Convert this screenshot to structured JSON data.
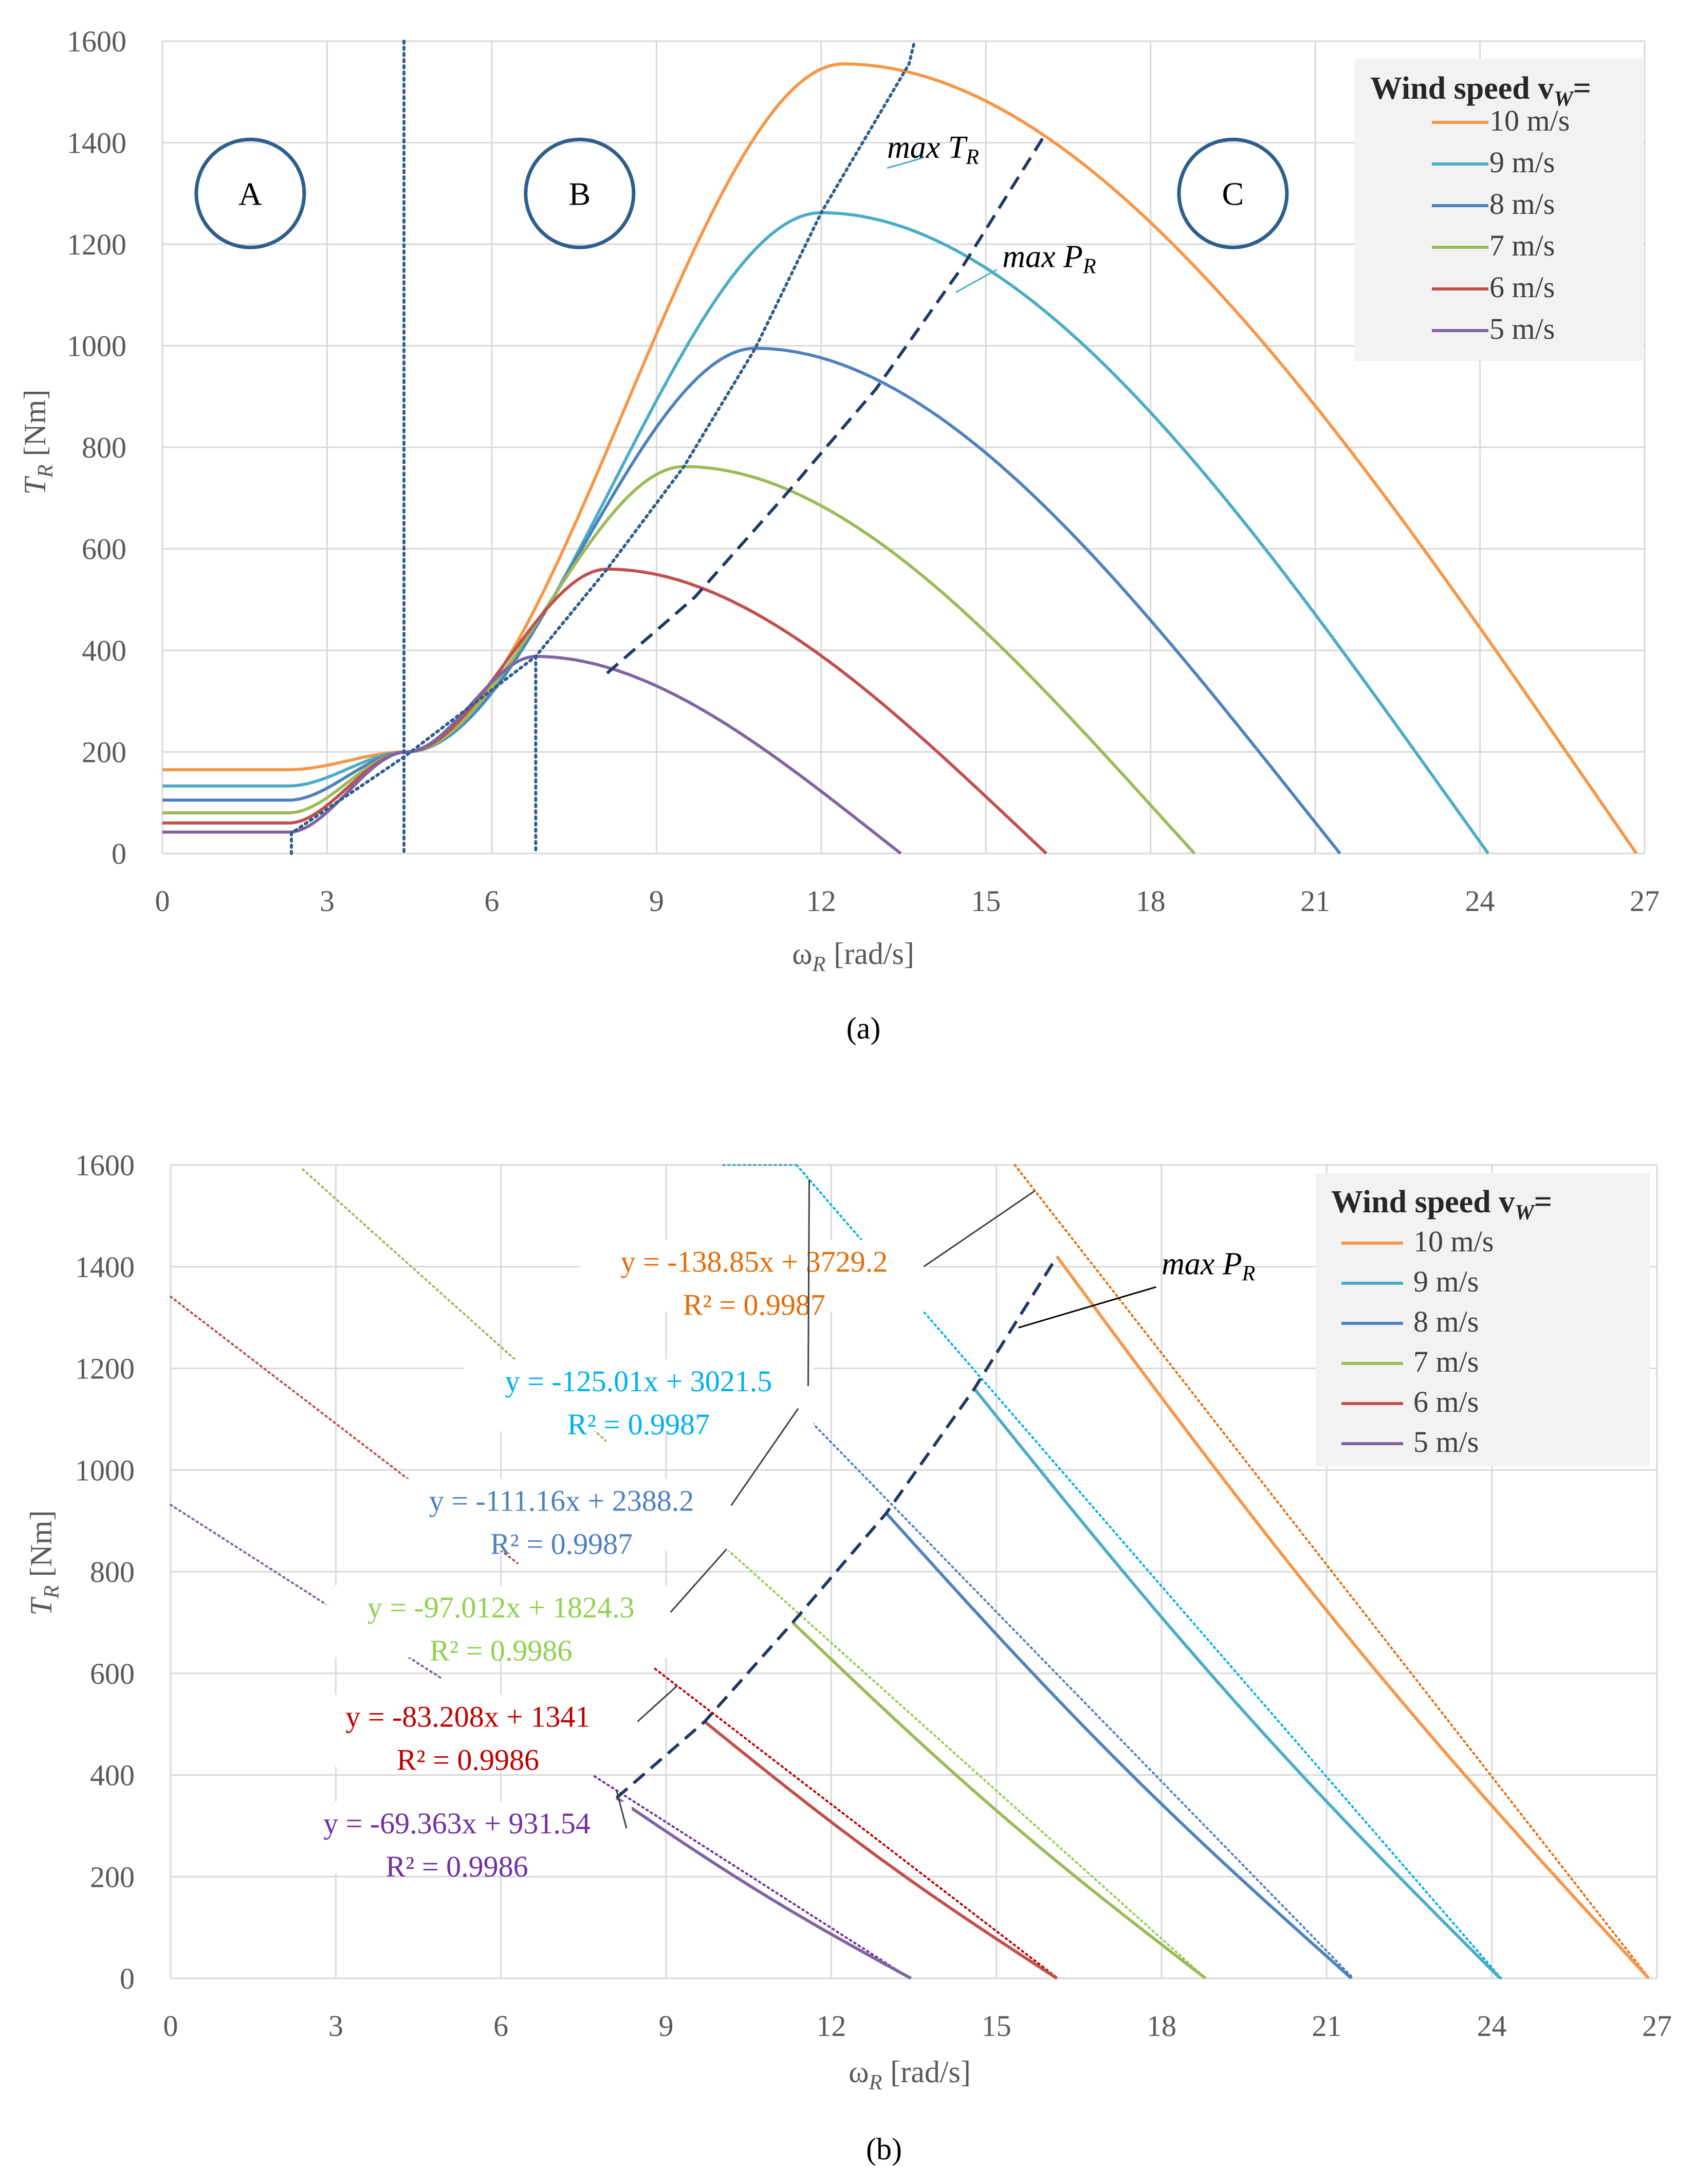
{
  "chart_data": [
    {
      "panel": "(a)",
      "type": "line",
      "xlabel_main": "ω",
      "xlabel_sub": "R",
      "xlabel_unit": "[rad/s]",
      "ylabel_main": "T",
      "ylabel_sub": "R",
      "ylabel_unit": "[Nm]",
      "xlim": [
        0,
        27
      ],
      "ylim": [
        0,
        1600
      ],
      "xticks": [
        "0",
        "3",
        "6",
        "9",
        "12",
        "15",
        "18",
        "21",
        "24",
        "27"
      ],
      "yticks": [
        "0",
        "200",
        "400",
        "600",
        "800",
        "1000",
        "1200",
        "1400",
        "1600"
      ],
      "grid": true,
      "legend_position": "top-right",
      "legend_title": "Wind speed v",
      "legend_title_sub": "W",
      "legend_title_suffix": "=",
      "series": [
        {
          "name": "10 m/s",
          "v": 10,
          "color": "#F79646",
          "plateau": 165,
          "peak_x": 12.4,
          "peak_y": 1555,
          "zero_x": 26.85
        },
        {
          "name": "9 m/s",
          "v": 9,
          "color": "#4BACC6",
          "plateau": 133,
          "peak_x": 12.0,
          "peak_y": 1262,
          "zero_x": 24.15
        },
        {
          "name": "8 m/s",
          "v": 8,
          "color": "#4F81BD",
          "plateau": 105,
          "peak_x": 10.8,
          "peak_y": 995,
          "zero_x": 21.45
        },
        {
          "name": "7 m/s",
          "v": 7,
          "color": "#9BBB59",
          "plateau": 80,
          "peak_x": 9.5,
          "peak_y": 762,
          "zero_x": 18.8
        },
        {
          "name": "6 m/s",
          "v": 6,
          "color": "#C0504D",
          "plateau": 60,
          "peak_x": 8.1,
          "peak_y": 560,
          "zero_x": 16.1
        },
        {
          "name": "5 m/s",
          "v": 5,
          "color": "#8064A2",
          "plateau": 42,
          "peak_x": 6.8,
          "peak_y": 388,
          "zero_x": 13.45
        }
      ],
      "zone_labels": [
        {
          "text": "A",
          "x": 1.6,
          "y": 1300
        },
        {
          "text": "B",
          "x": 7.6,
          "y": 1300
        },
        {
          "text": "C",
          "x": 19.5,
          "y": 1300
        }
      ],
      "boundary_x": 4.4,
      "max_T_curve": [
        [
          2.35,
          0
        ],
        [
          2.35,
          40
        ],
        [
          4.4,
          190
        ],
        [
          6.8,
          388
        ],
        [
          8.1,
          560
        ],
        [
          9.5,
          762
        ],
        [
          10.8,
          995
        ],
        [
          12.0,
          1262
        ],
        [
          13.6,
          1555
        ],
        [
          13.7,
          1600
        ]
      ],
      "max_P_curve": [
        [
          8.1,
          355
        ],
        [
          9.7,
          505
        ],
        [
          11.3,
          700
        ],
        [
          13.0,
          915
        ],
        [
          14.6,
          1160
        ],
        [
          16.1,
          1420
        ]
      ],
      "annotations": [
        {
          "text": "max T",
          "sub": "R",
          "x": 13.2,
          "y": 1370
        },
        {
          "text": "max P",
          "sub": "R",
          "x": 15.3,
          "y": 1155
        }
      ]
    },
    {
      "panel": "(b)",
      "type": "line",
      "xlabel_main": "ω",
      "xlabel_sub": "R",
      "xlabel_unit": "[rad/s]",
      "ylabel_main": "T",
      "ylabel_sub": "R",
      "ylabel_unit": "[Nm]",
      "xlim": [
        0,
        27
      ],
      "ylim": [
        0,
        1600
      ],
      "xticks": [
        "0",
        "3",
        "6",
        "9",
        "12",
        "15",
        "18",
        "21",
        "24",
        "27"
      ],
      "yticks": [
        "0",
        "200",
        "400",
        "600",
        "800",
        "1000",
        "1200",
        "1400",
        "1600"
      ],
      "grid": true,
      "legend_position": "top-right",
      "legend_title": "Wind speed v",
      "legend_title_sub": "W",
      "legend_title_suffix": "=",
      "series": [
        {
          "name": "10 m/s",
          "v": 10,
          "color": "#F79646",
          "trend_color": "#E46C0A",
          "start_x": 16.1,
          "end_x": 26.85,
          "slope": -138.85,
          "intercept": 3729.2,
          "equation": "y = -138.85x + 3729.2",
          "r2": "R² = 0.9987",
          "label_x": 7.6,
          "label_y": 1390,
          "trend_visible_from": 15.3
        },
        {
          "name": "9 m/s",
          "v": 9,
          "color": "#4BACC6",
          "trend_color": "#00B0F0",
          "start_x": 14.6,
          "end_x": 24.15,
          "slope": -125.01,
          "intercept": 3021.5,
          "equation": "y = -125.01x + 3021.5",
          "r2": "R² = 0.9987",
          "label_x": 5.5,
          "label_y": 1155,
          "trend_visible_from": 11.2
        },
        {
          "name": "8 m/s",
          "v": 8,
          "color": "#4F81BD",
          "trend_color": "#4F81BD",
          "start_x": 13.0,
          "end_x": 21.45,
          "slope": -111.16,
          "intercept": 2388.2,
          "equation": "y = -111.16x + 2388.2",
          "r2": "R² = 0.9987",
          "label_x": 4.1,
          "label_y": 920,
          "trend_visible_from": 11.0
        },
        {
          "name": "7 m/s",
          "v": 7,
          "color": "#9BBB59",
          "trend_color": "#92D050",
          "start_x": 11.3,
          "end_x": 18.8,
          "slope": -97.012,
          "intercept": 1824.3,
          "equation": "y = -97.012x + 1824.3",
          "r2": "R² = 0.9986",
          "label_x": 3.0,
          "label_y": 710,
          "trend_visible_from": 9.7
        },
        {
          "name": "6 m/s",
          "v": 6,
          "color": "#C0504D",
          "trend_color": "#C00000",
          "start_x": 9.7,
          "end_x": 16.1,
          "slope": -83.208,
          "intercept": 1341,
          "equation": "y = -83.208x + 1341",
          "r2": "R² = 0.9986",
          "label_x": 2.4,
          "label_y": 495,
          "trend_visible_from": 8.8
        },
        {
          "name": "5 m/s",
          "v": 5,
          "color": "#8064A2",
          "trend_color": "#7030A0",
          "start_x": 8.1,
          "end_x": 13.45,
          "slope": -69.363,
          "intercept": 931.54,
          "equation": "y = -69.363x + 931.54",
          "r2": "R² = 0.9986",
          "label_x": 2.2,
          "label_y": 285,
          "trend_visible_from": 7.7
        }
      ],
      "segments_a": [
        {
          "color": "#C0504D",
          "x0": 0,
          "x1": 6.3
        },
        {
          "color": "#8064A2",
          "x0": 0,
          "x1": 4.9
        },
        {
          "color": "#9BBB59",
          "x0": 2.4,
          "x1": 7.9
        },
        {
          "color": "#4BACC6",
          "x0": 7.2,
          "x1": 10.0
        }
      ],
      "max_P_curve": [
        [
          8.1,
          355
        ],
        [
          9.7,
          505
        ],
        [
          11.3,
          700
        ],
        [
          13.0,
          915
        ],
        [
          14.6,
          1160
        ],
        [
          16.1,
          1420
        ]
      ],
      "annotations": [
        {
          "text": "max P",
          "sub": "R",
          "x": 18.0,
          "y": 1385
        }
      ]
    }
  ],
  "captions": [
    "(a)",
    "(b)"
  ]
}
